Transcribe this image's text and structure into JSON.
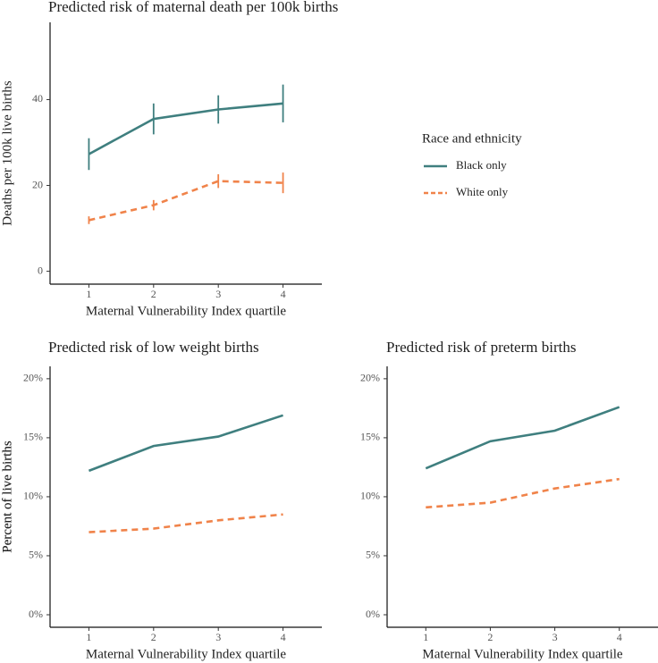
{
  "chart_data": [
    {
      "type": "line",
      "title": "Predicted risk of maternal death per 100k births",
      "xlabel": "Maternal Vulnerability Index quartile",
      "ylabel": "Deaths per 100k live births",
      "x": [
        1,
        2,
        3,
        4
      ],
      "xlim": [
        0.4,
        4.6
      ],
      "xticks": [
        1,
        2,
        3,
        4
      ],
      "ylim": [
        -3,
        58
      ],
      "yticks": [
        0,
        20,
        40
      ],
      "legend": "right",
      "legend_title": "Race and ethnicity",
      "series": [
        {
          "name": "Black only",
          "color": "#3f7f7f",
          "linestyle": "solid",
          "values": [
            27.3,
            35.5,
            37.7,
            39.1
          ],
          "errors": [
            3.7,
            3.6,
            3.3,
            4.4
          ]
        },
        {
          "name": "White only",
          "color": "#f0834a",
          "linestyle": "dashed",
          "values": [
            11.9,
            15.4,
            21.0,
            20.6
          ],
          "errors": [
            0.9,
            1.2,
            1.6,
            2.4
          ]
        }
      ]
    },
    {
      "type": "line",
      "title": "Predicted risk of low weight births",
      "xlabel": "Maternal Vulnerability Index quartile",
      "ylabel": "Percent of live births",
      "x": [
        1,
        2,
        3,
        4
      ],
      "xlim": [
        0.4,
        4.6
      ],
      "xticks": [
        1,
        2,
        3,
        4
      ],
      "ylim": [
        -1.06,
        21.05
      ],
      "yticks": [
        {
          "value": 0,
          "label": "0%"
        },
        {
          "value": 5,
          "label": "5%"
        },
        {
          "value": 10,
          "label": "10%"
        },
        {
          "value": 15,
          "label": "15%"
        },
        {
          "value": 20,
          "label": "20%"
        }
      ],
      "series": [
        {
          "name": "Black only",
          "color": "#3f7f7f",
          "linestyle": "solid",
          "values": [
            12.2,
            14.3,
            15.1,
            16.9
          ]
        },
        {
          "name": "White only",
          "color": "#f0834a",
          "linestyle": "dashed",
          "values": [
            7.0,
            7.3,
            8.0,
            8.5
          ]
        }
      ]
    },
    {
      "type": "line",
      "title": "Predicted risk of preterm births",
      "xlabel": "Maternal Vulnerability Index quartile",
      "ylabel": "Percent of live births",
      "x": [
        1,
        2,
        3,
        4
      ],
      "xlim": [
        0.4,
        4.6
      ],
      "xticks": [
        1,
        2,
        3,
        4
      ],
      "ylim": [
        -1.06,
        21.05
      ],
      "yticks": [
        {
          "value": 0,
          "label": "0%"
        },
        {
          "value": 5,
          "label": "5%"
        },
        {
          "value": 10,
          "label": "10%"
        },
        {
          "value": 15,
          "label": "15%"
        },
        {
          "value": 20,
          "label": "20%"
        }
      ],
      "series": [
        {
          "name": "Black only",
          "color": "#3f7f7f",
          "linestyle": "solid",
          "values": [
            12.4,
            14.7,
            15.6,
            17.6
          ]
        },
        {
          "name": "White only",
          "color": "#f0834a",
          "linestyle": "dashed",
          "values": [
            9.1,
            9.5,
            10.7,
            11.5
          ]
        }
      ]
    }
  ]
}
